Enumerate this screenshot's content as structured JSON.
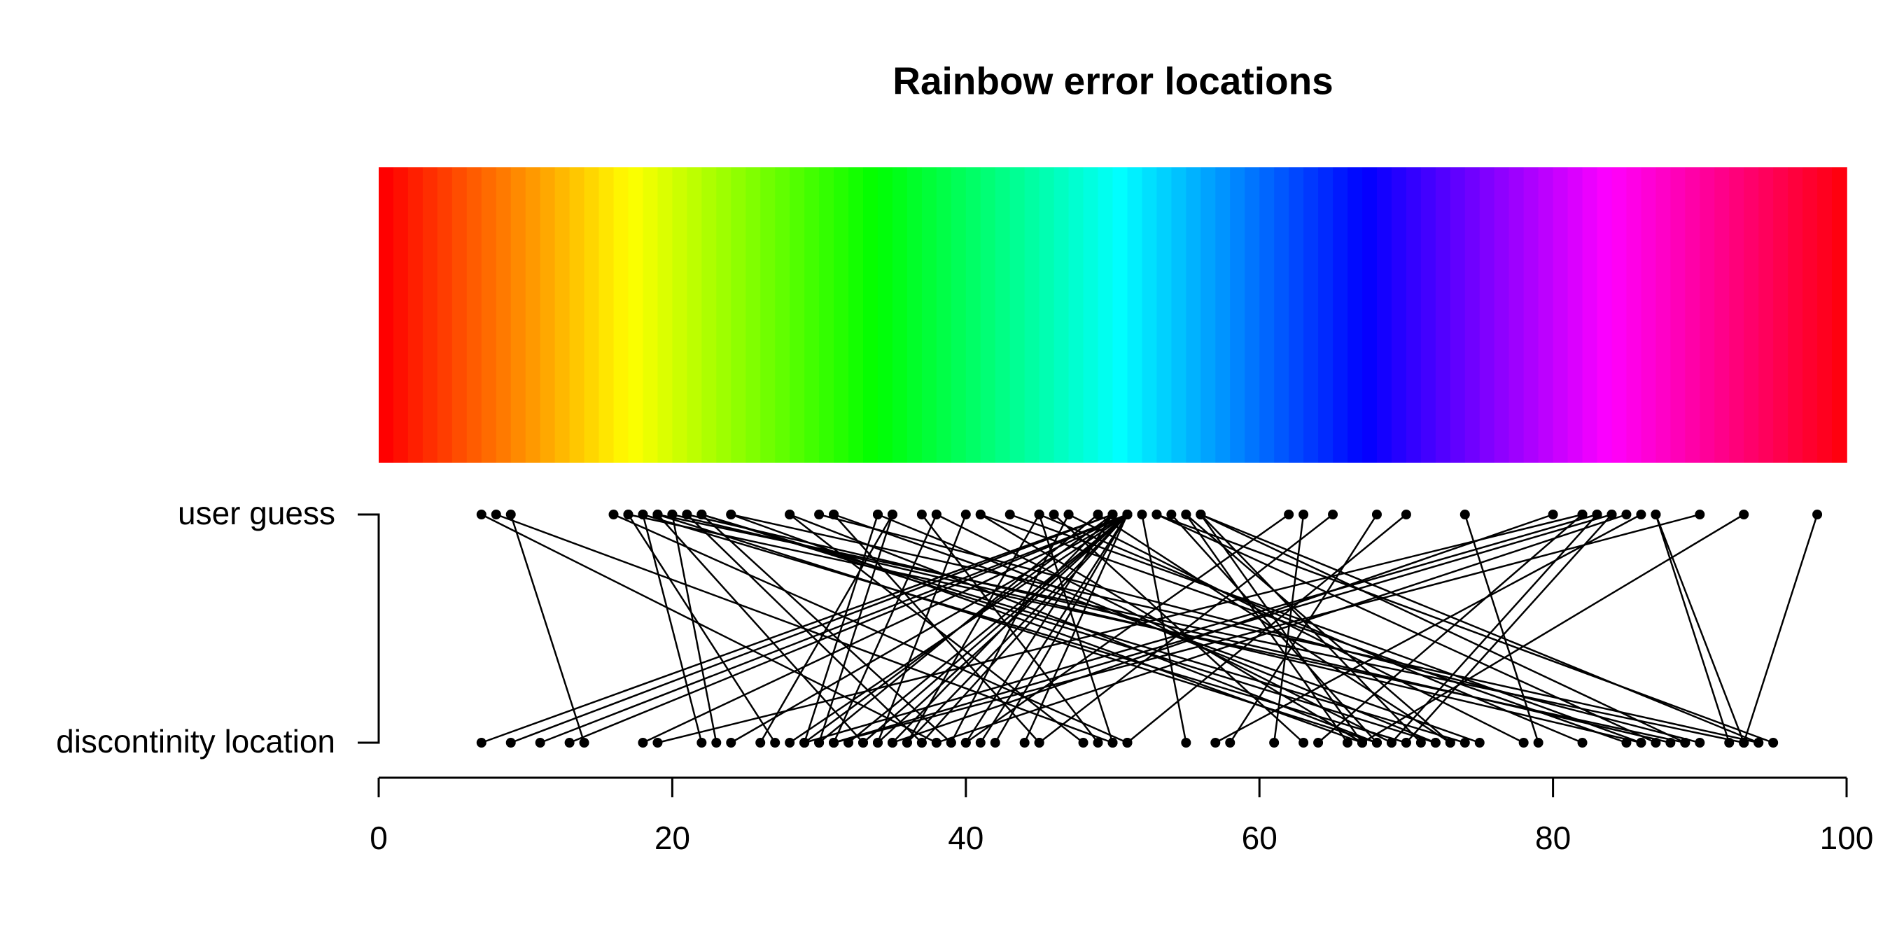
{
  "chart_data": {
    "type": "segments",
    "title": "Rainbow error locations",
    "row_labels": [
      "user guess",
      "discontinity location"
    ],
    "xlim": [
      0,
      100
    ],
    "xticks": [
      0,
      20,
      40,
      60,
      80,
      100
    ],
    "rainbow": true,
    "color": "#000000",
    "guess": [
      7,
      8,
      9,
      16,
      17,
      18,
      18,
      19,
      19,
      20,
      20,
      21,
      21,
      22,
      22,
      24,
      28,
      30,
      31,
      34,
      34,
      35,
      35,
      37,
      38,
      38,
      40,
      41,
      43,
      45,
      45,
      46,
      47,
      49,
      50,
      50,
      50,
      50,
      51,
      51,
      51,
      51,
      51,
      51,
      51,
      51,
      51,
      51,
      51,
      51,
      51,
      50,
      49,
      52,
      53,
      54,
      55,
      55,
      56,
      56,
      56,
      62,
      63,
      65,
      68,
      70,
      74,
      80,
      82,
      82,
      83,
      83,
      84,
      84,
      85,
      86,
      87,
      87,
      90,
      93,
      98,
      56,
      53,
      47,
      45,
      41,
      31,
      28,
      24,
      22,
      19,
      17
    ],
    "location": [
      38,
      50,
      14,
      51,
      27,
      22,
      70,
      33,
      68,
      23,
      86,
      37,
      88,
      39,
      74,
      67,
      48,
      90,
      45,
      29,
      72,
      26,
      30,
      49,
      69,
      31,
      34,
      67,
      86,
      50,
      36,
      63,
      39,
      73,
      7,
      35,
      40,
      9,
      11,
      13,
      28,
      32,
      33,
      34,
      36,
      37,
      41,
      42,
      44,
      24,
      18,
      29,
      30,
      55,
      87,
      68,
      66,
      73,
      67,
      71,
      89,
      40,
      61,
      45,
      58,
      51,
      79,
      35,
      19,
      64,
      29,
      69,
      70,
      31,
      38,
      57,
      92,
      93,
      31,
      67,
      93,
      94,
      95,
      78,
      82,
      85,
      75,
      68,
      94,
      72,
      93,
      89
    ]
  }
}
